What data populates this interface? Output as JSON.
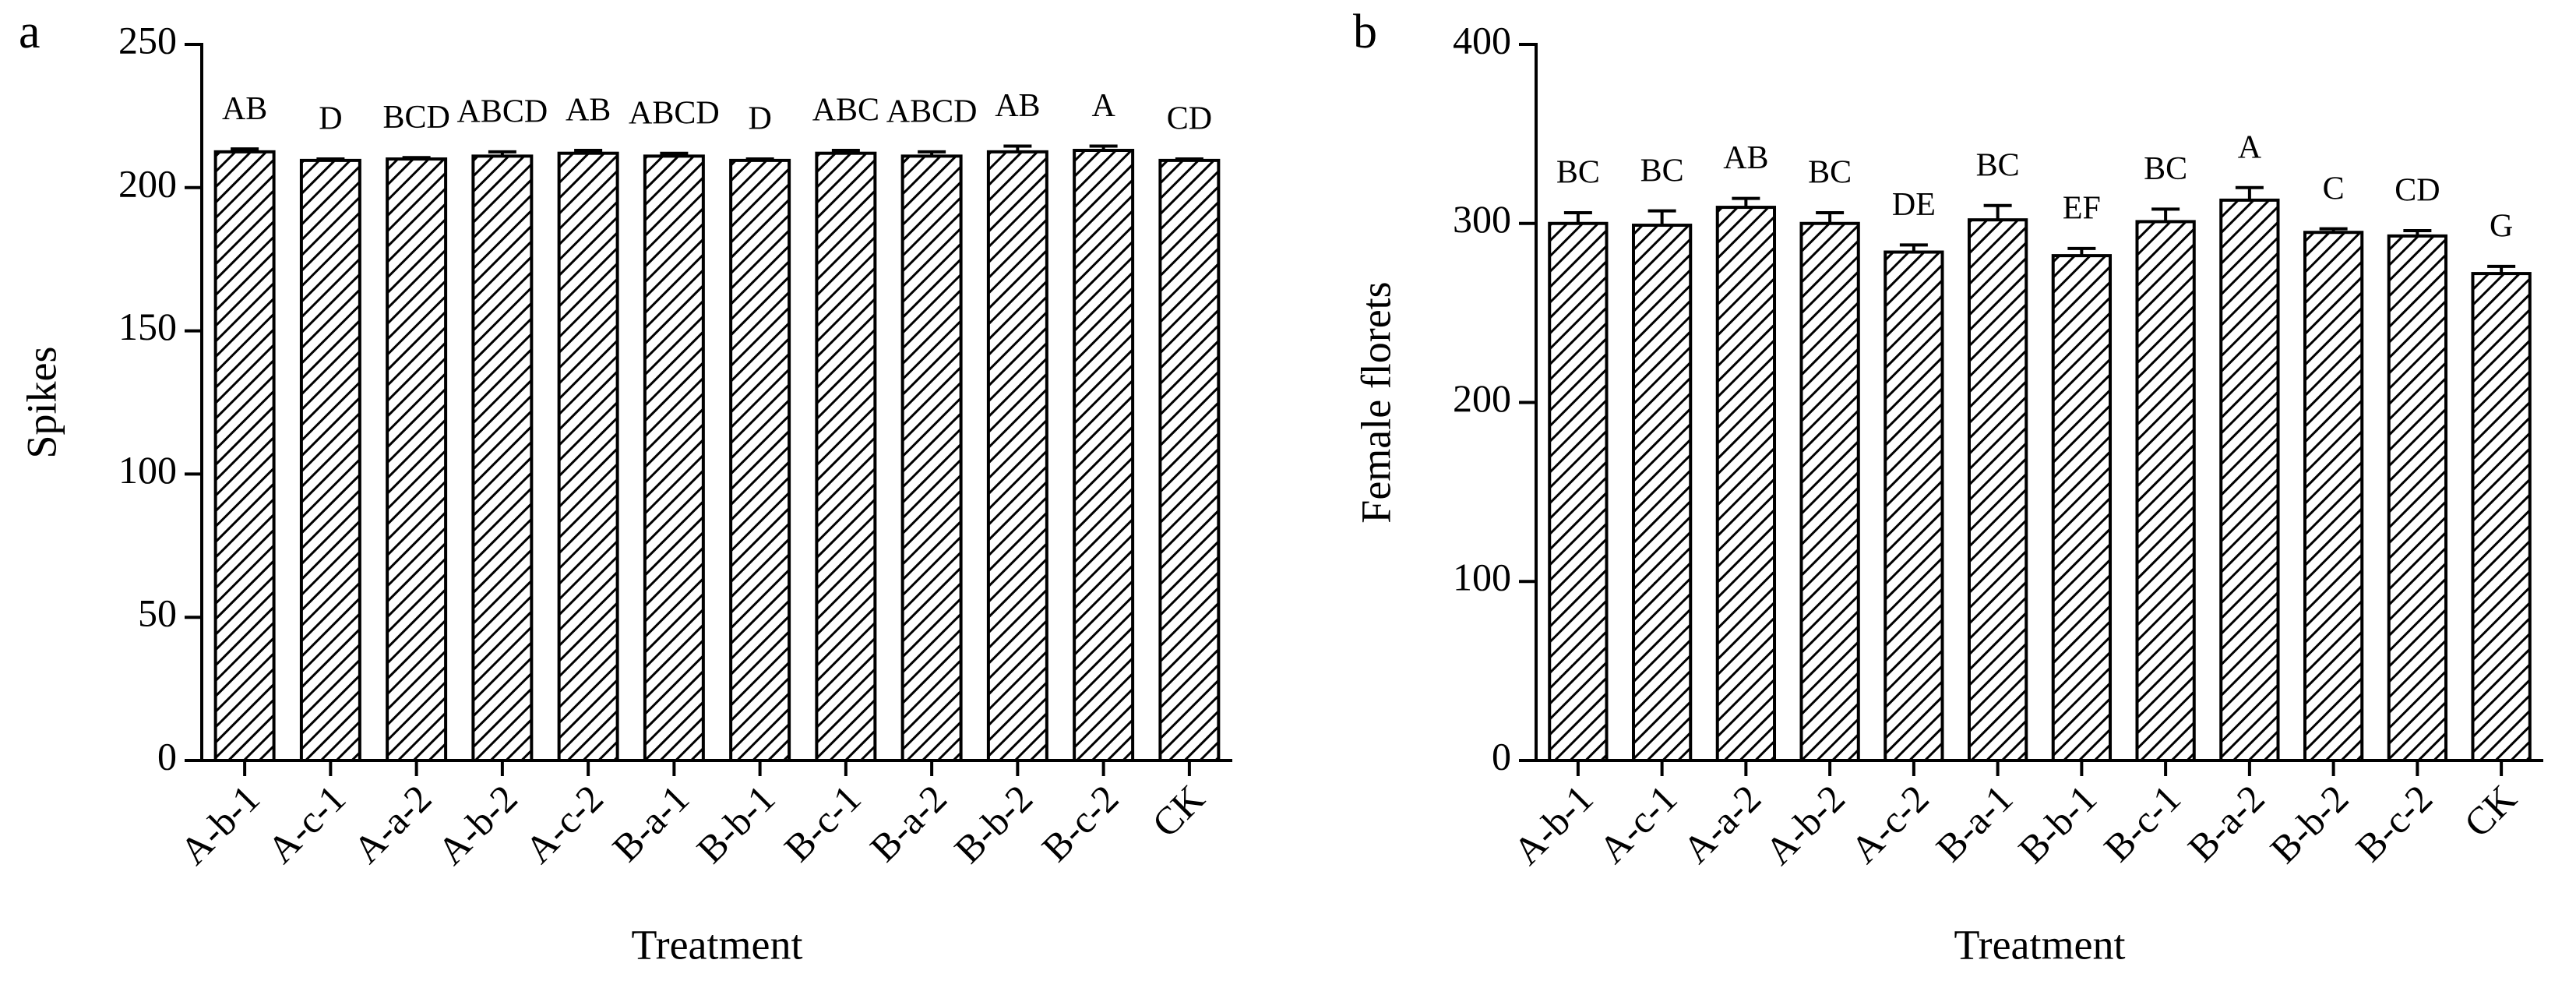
{
  "chart_data": [
    {
      "type": "bar",
      "panel_label": "a",
      "y_label": "Spikes",
      "x_label": "Treatment",
      "categories": [
        "A-b-1",
        "A-c-1",
        "A-a-2",
        "A-b-2",
        "A-c-2",
        "B-a-1",
        "B-b-1",
        "B-c-1",
        "B-a-2",
        "B-b-2",
        "B-c-2",
        "CK"
      ],
      "values": [
        212.5,
        209.5,
        210,
        211,
        212,
        211,
        209.5,
        212,
        211,
        212.5,
        213,
        209.5
      ],
      "errors": [
        1,
        0.5,
        0.5,
        1.5,
        1,
        1,
        0.5,
        1,
        1.5,
        2,
        1.5,
        0.5
      ],
      "annotations": [
        "AB",
        "D",
        "BCD",
        "ABCD",
        "AB",
        "ABCD",
        "D",
        "ABC",
        "ABCD",
        "AB",
        "A",
        "CD"
      ],
      "color": "#000000",
      "ylim": [
        0,
        250
      ],
      "yticks": [
        0,
        50,
        100,
        150,
        200,
        250
      ]
    },
    {
      "type": "bar",
      "panel_label": "b",
      "y_label": "Female florets",
      "x_label": "Treatment",
      "categories": [
        "A-b-1",
        "A-c-1",
        "A-a-2",
        "A-b-2",
        "A-c-2",
        "B-a-1",
        "B-b-1",
        "B-c-1",
        "B-a-2",
        "B-b-2",
        "B-c-2",
        "CK"
      ],
      "values": [
        300,
        299,
        309,
        300,
        284,
        302,
        282,
        301,
        313,
        295,
        293,
        272
      ],
      "errors": [
        6,
        8,
        5,
        6,
        4,
        8,
        4,
        7,
        7,
        2,
        3,
        4
      ],
      "annotations": [
        "BC",
        "BC",
        "AB",
        "BC",
        "DE",
        "BC",
        "EF",
        "BC",
        "A",
        "C",
        "CD",
        "G"
      ],
      "color": "#000000",
      "ylim": [
        0,
        400
      ],
      "yticks": [
        0,
        100,
        200,
        300,
        400
      ]
    }
  ]
}
